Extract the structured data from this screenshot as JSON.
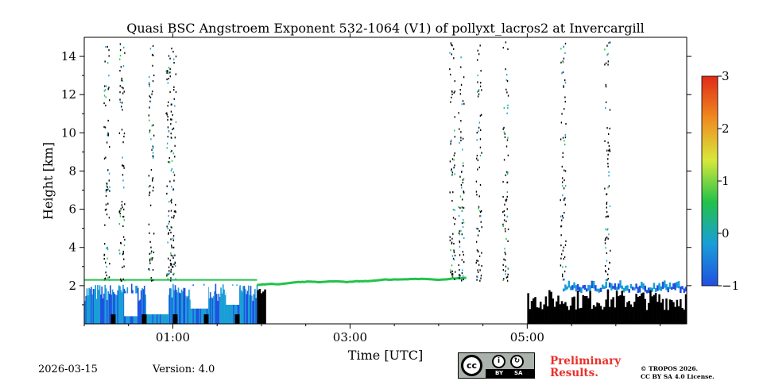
{
  "chart_data": {
    "type": "heatmap",
    "title": "Quasi BSC Angstroem Exponent 532-1064 (V1) of pollyxt_lacros2 at Invercargill",
    "xlabel": "Time [UTC]",
    "ylabel": "Height [km]",
    "xlim_hours": [
      0,
      6.8
    ],
    "ylim": [
      0,
      15
    ],
    "x_ticks": [
      {
        "hour": 1,
        "label": "01:00"
      },
      {
        "hour": 3,
        "label": "03:00"
      },
      {
        "hour": 5,
        "label": "05:00"
      }
    ],
    "y_ticks": [
      {
        "value": 2,
        "label": "2"
      },
      {
        "value": 4,
        "label": "4"
      },
      {
        "value": 6,
        "label": "6"
      },
      {
        "value": 8,
        "label": "8"
      },
      {
        "value": 10,
        "label": "10"
      },
      {
        "value": 12,
        "label": "12"
      },
      {
        "value": 14,
        "label": "14"
      }
    ],
    "colorbar": {
      "min": -1,
      "max": 3,
      "ticks": [
        {
          "value": -1,
          "label": "−1"
        },
        {
          "value": 0,
          "label": "0"
        },
        {
          "value": 1,
          "label": "1"
        },
        {
          "value": 2,
          "label": "2"
        },
        {
          "value": 3,
          "label": "3"
        }
      ],
      "colors": [
        "#2050e0",
        "#1a9ed8",
        "#22c24a",
        "#d8e83a",
        "#f08a20",
        "#e02a18"
      ]
    },
    "regions": [
      {
        "type": "boundary_layer",
        "t0": 0.0,
        "t1": 1.95,
        "h0": 0.0,
        "h1": 2.3,
        "value": -0.5
      },
      {
        "type": "cloud_top_line",
        "t0": 1.95,
        "t1": 4.3,
        "h": 2.05,
        "value": 0.5
      },
      {
        "type": "low_layer",
        "t0": 5.4,
        "t1": 6.8,
        "h0": 1.6,
        "h1": 2.3,
        "value": -0.6
      },
      {
        "type": "blocked",
        "t0": 5.0,
        "t1": 6.8,
        "h0": 0.0,
        "h1": 1.8
      },
      {
        "type": "blocked",
        "t0": 1.95,
        "t1": 2.05,
        "h0": 0.0,
        "h1": 2.0
      }
    ],
    "plumes_hours": [
      0.25,
      0.42,
      0.75,
      0.95,
      1.0,
      4.15,
      4.25,
      4.45,
      4.75,
      5.4,
      5.9
    ]
  },
  "footer": {
    "date": "2026-03-15",
    "version": "Version: 4.0",
    "cc_label": "cc",
    "cc_by": "BY",
    "cc_sa": "SA",
    "preliminary": "Preliminary",
    "results": "Results.",
    "copyright1": "© TROPOS 2026.",
    "copyright2": "CC BY SA 4.0 License."
  }
}
